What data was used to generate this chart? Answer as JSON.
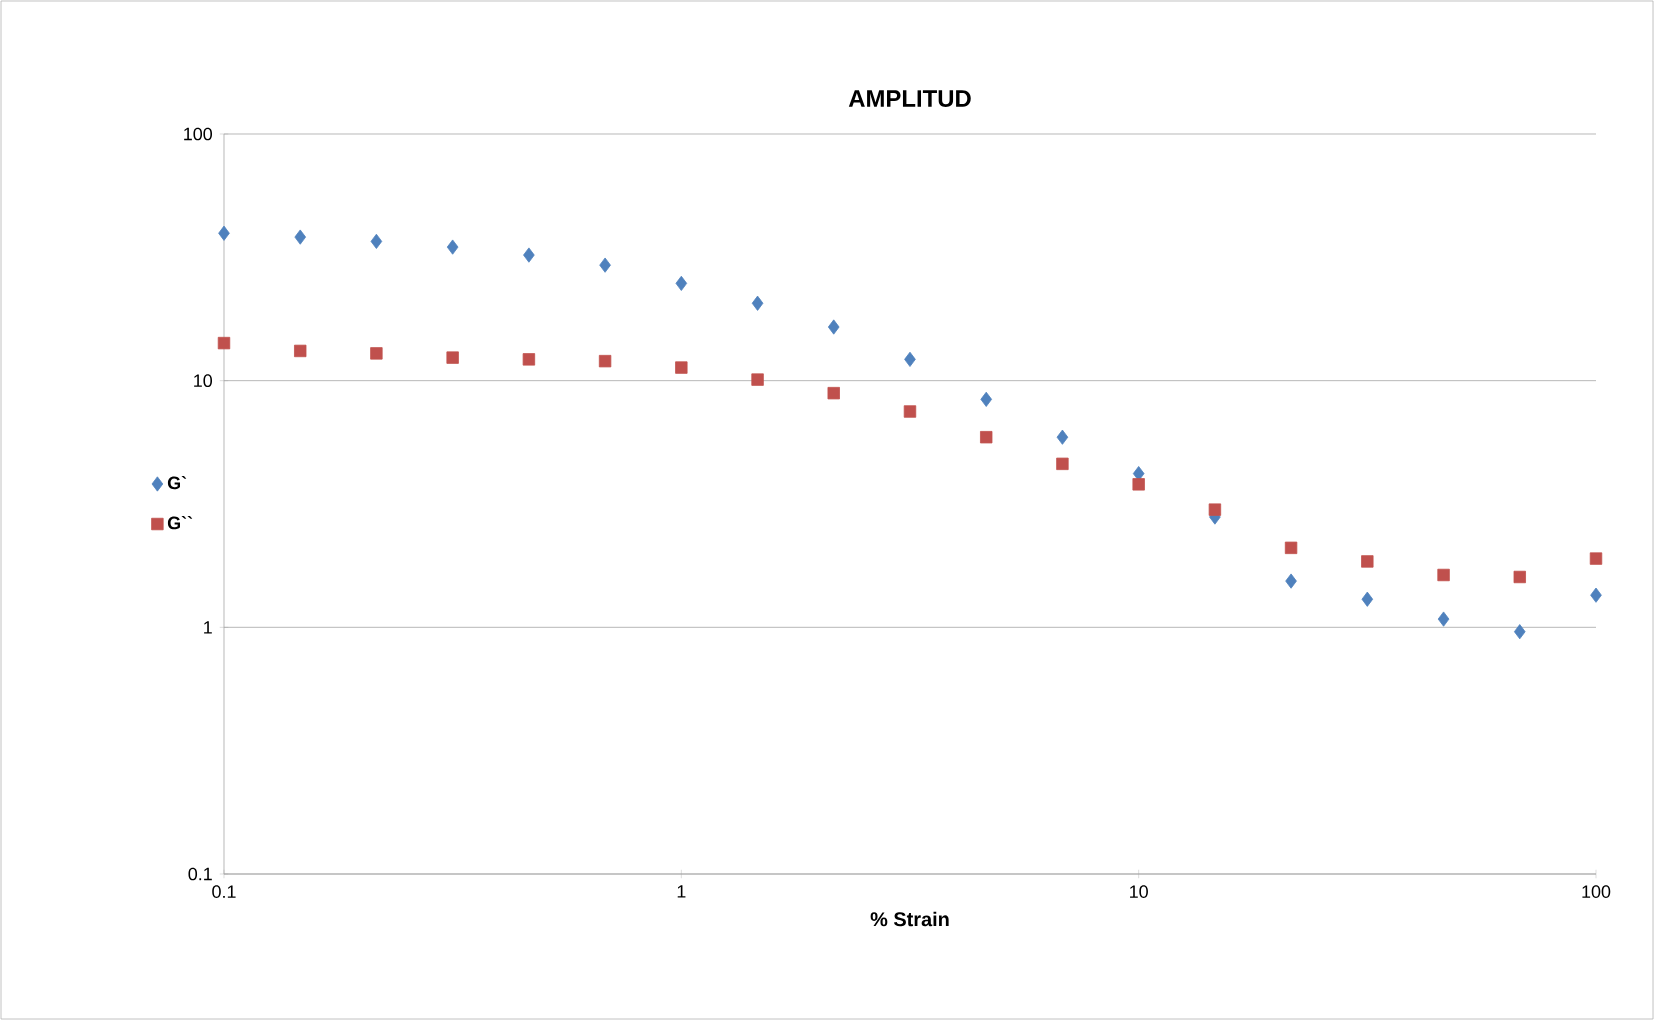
{
  "chart_data": {
    "type": "scatter",
    "title": "AMPLITUD",
    "xlabel": "% Strain",
    "log": "xy",
    "grid": "y",
    "legend": "left",
    "xlim": [
      0.1,
      100
    ],
    "ylim": [
      0.1,
      100
    ],
    "xticks": [
      0.1,
      1,
      10,
      100
    ],
    "yticks": [
      0.1,
      1,
      10,
      100
    ],
    "x": [
      0.1,
      0.1468,
      0.2154,
      0.3162,
      0.4642,
      0.6813,
      1,
      1.468,
      2.154,
      3.162,
      4.642,
      6.813,
      10,
      14.68,
      21.54,
      31.62,
      46.42,
      68.13,
      100
    ],
    "series": [
      {
        "name": "G`",
        "color": "#4f81bd",
        "marker": "diamond",
        "values": [
          39.6,
          38.2,
          36.7,
          34.8,
          32.3,
          29.4,
          24.8,
          20.6,
          16.5,
          12.2,
          8.4,
          5.9,
          4.2,
          2.8,
          1.54,
          1.3,
          1.08,
          0.96,
          1.35
        ]
      },
      {
        "name": "G``",
        "color": "#c0504d",
        "marker": "square",
        "values": [
          14.2,
          13.2,
          12.9,
          12.4,
          12.2,
          12.0,
          11.3,
          10.1,
          8.9,
          7.5,
          5.9,
          4.6,
          3.8,
          3.0,
          2.1,
          1.85,
          1.63,
          1.6,
          1.9
        ]
      }
    ]
  }
}
